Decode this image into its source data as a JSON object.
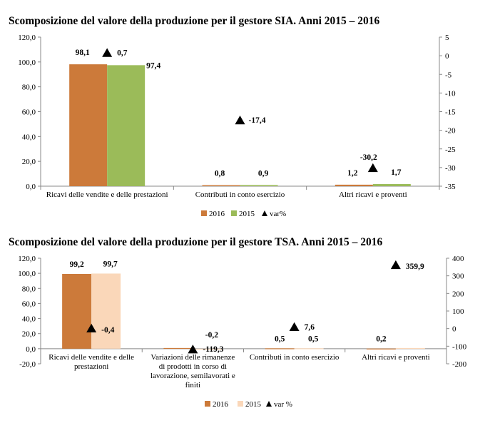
{
  "chart_data": [
    {
      "type": "bar",
      "title": "Scomposizione del valore della produzione per il gestore SIA. Anni 2015 – 2016",
      "categories": [
        "Ricavi delle vendite e delle prestazioni",
        "Contributi in conto esercizio",
        "Altri ricavi e proventi"
      ],
      "category_lines": [
        [
          "Ricavi delle vendite e delle prestazioni"
        ],
        [
          "Contributi in conto esercizio"
        ],
        [
          "Altri ricavi e proventi"
        ]
      ],
      "series": [
        {
          "name": "2016",
          "type": "bar",
          "axis": "left",
          "color": "#CC7A3A",
          "values": [
            98.1,
            0.8,
            1.2
          ],
          "labels": [
            "98,1",
            "0,8",
            "1,2"
          ]
        },
        {
          "name": "2015",
          "type": "bar",
          "axis": "left",
          "color": "#9BBB59",
          "values": [
            97.4,
            0.9,
            1.7
          ],
          "labels": [
            "97,4",
            "0,9",
            "1,7"
          ]
        },
        {
          "name": "var%",
          "type": "marker",
          "axis": "right",
          "color": "#000000",
          "values": [
            0.7,
            -17.4,
            -30.2
          ],
          "labels": [
            "0,7",
            "-17,4",
            "-30,2"
          ]
        }
      ],
      "y_left": {
        "ylim": [
          0,
          120
        ],
        "ticks": [
          "0,0",
          "20,0",
          "40,0",
          "60,0",
          "80,0",
          "100,0",
          "120,0"
        ]
      },
      "y_right": {
        "ylim": [
          -35,
          5
        ],
        "ticks": [
          "-35",
          "-30",
          "-25",
          "-20",
          "-15",
          "-10",
          "-5",
          "0",
          "5"
        ]
      },
      "legend": {
        "placement": "bottom",
        "items": [
          "2016",
          "2015",
          "var%"
        ]
      }
    },
    {
      "type": "bar",
      "title": "Scomposizione del valore della produzione per il gestore TSA. Anni 2015 – 2016",
      "categories": [
        "Ricavi delle vendite e delle prestazioni",
        "Variazioni delle rimanenze di prodotti in corso di lavorazione, semilavorati e finiti",
        "Contributi in conto esercizio",
        "Altri ricavi e proventi"
      ],
      "category_lines": [
        [
          "Ricavi delle vendite e delle",
          "prestazioni"
        ],
        [
          "Variazioni delle rimanenze",
          "di prodotti in corso di",
          "lavorazione, semilavorati e",
          "finiti"
        ],
        [
          "Contributi in conto esercizio"
        ],
        [
          "Altri ricavi e proventi"
        ]
      ],
      "series": [
        {
          "name": "2016",
          "type": "bar",
          "axis": "left",
          "color": "#CC7A3A",
          "values": [
            99.2,
            0.0,
            0.5,
            0.2
          ],
          "labels": [
            "99,2",
            "",
            "0,5",
            "0,2"
          ]
        },
        {
          "name": "2015",
          "type": "bar",
          "axis": "left",
          "color": "#FAD7B9",
          "values": [
            99.7,
            -0.2,
            0.5,
            0.0
          ],
          "labels": [
            "99,7",
            "-0,2",
            "0,5",
            ""
          ]
        },
        {
          "name": "var %",
          "type": "marker",
          "axis": "right",
          "color": "#000000",
          "values": [
            -0.4,
            -119.3,
            7.6,
            359.9
          ],
          "labels": [
            "-0,4",
            "-119,3",
            "7,6",
            "359,9"
          ]
        }
      ],
      "y_left": {
        "ylim": [
          -20,
          120
        ],
        "ticks": [
          "-20,0",
          "0,0",
          "20,0",
          "40,0",
          "60,0",
          "80,0",
          "100,0",
          "120,0"
        ]
      },
      "y_right": {
        "ylim": [
          -200,
          400
        ],
        "ticks": [
          "-200",
          "-100",
          "0",
          "100",
          "200",
          "300",
          "400"
        ]
      },
      "legend": {
        "placement": "bottom",
        "items": [
          "2016",
          "2015",
          "var %"
        ]
      }
    }
  ]
}
